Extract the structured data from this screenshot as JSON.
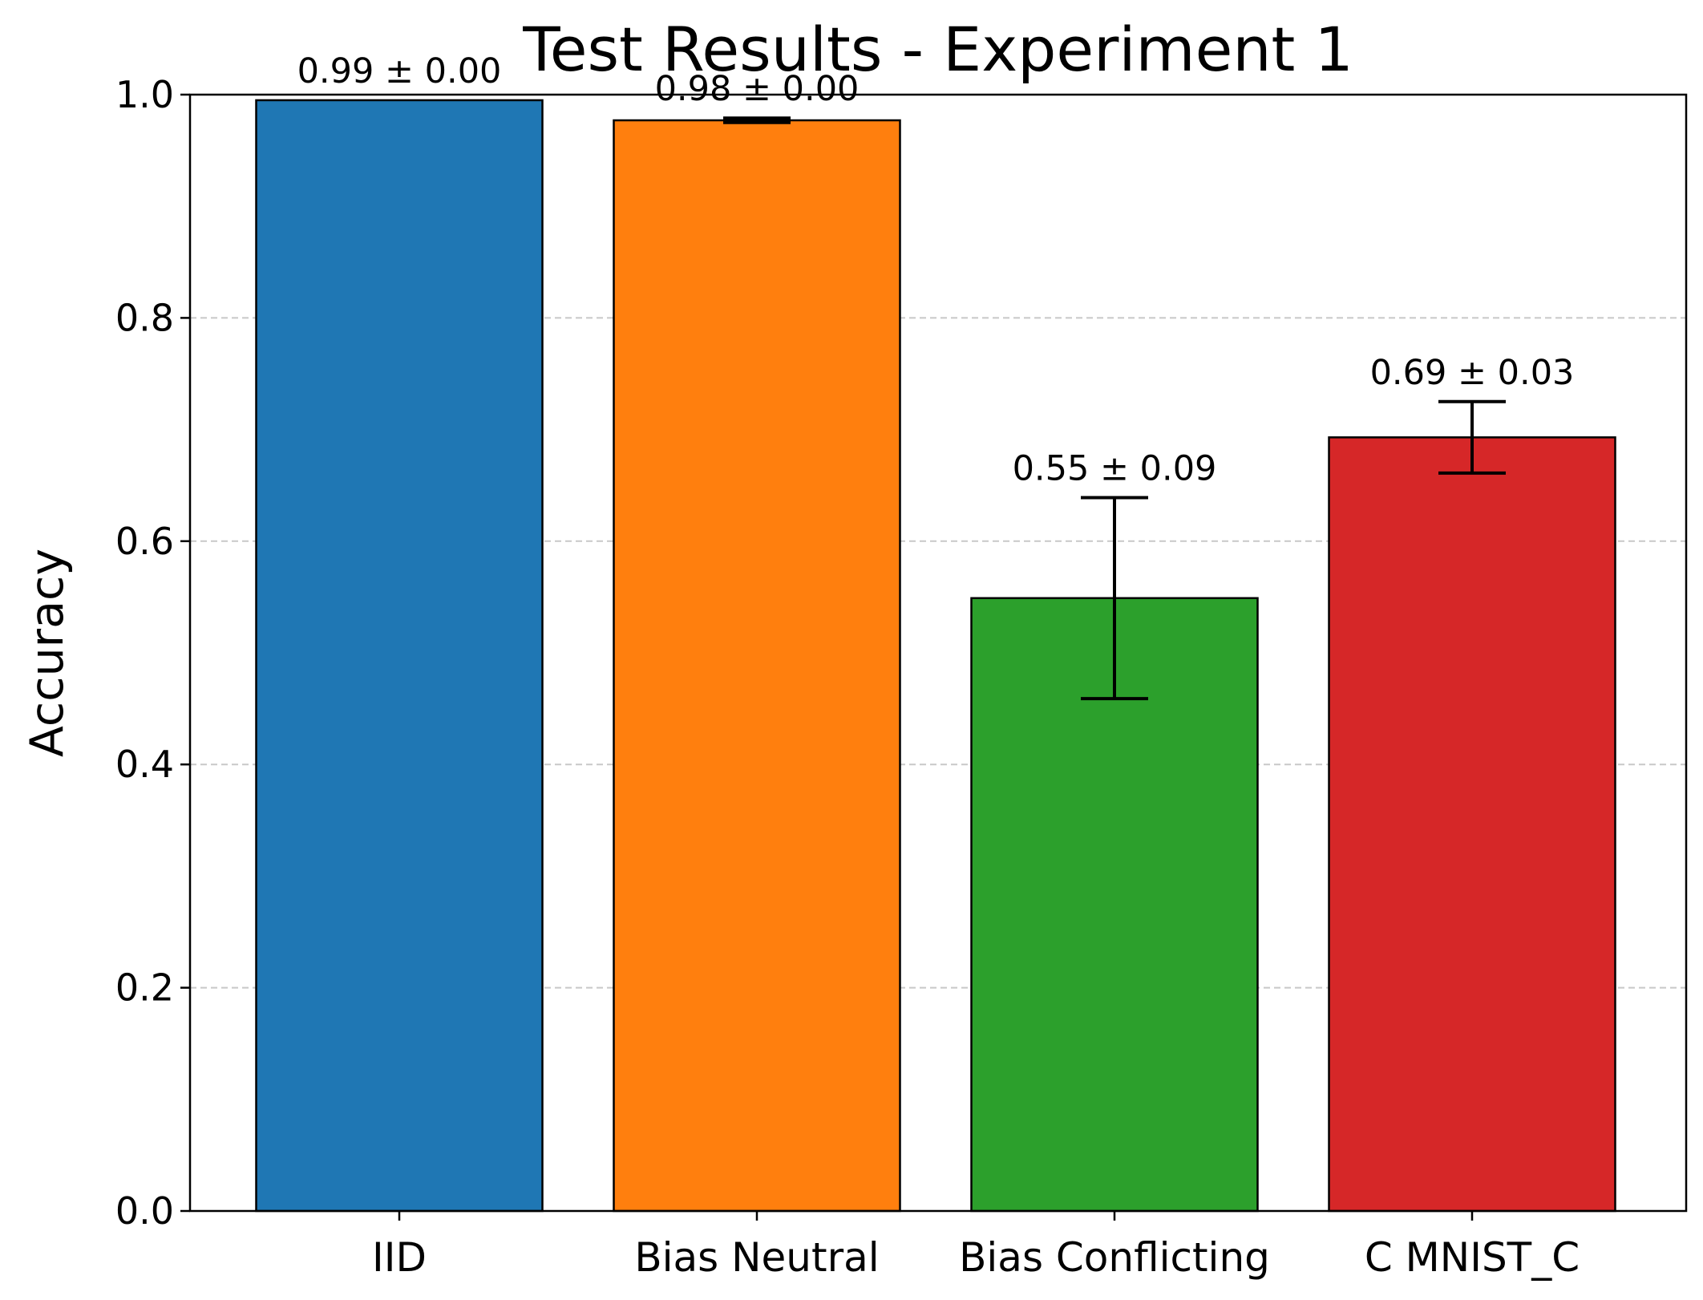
{
  "chart_data": {
    "type": "bar",
    "title": "Test Results - Experiment 1",
    "xlabel": "",
    "ylabel": "Accuracy",
    "ylim": [
      0.0,
      1.0
    ],
    "yticks": [
      "0.0",
      "0.2",
      "0.4",
      "0.6",
      "0.8",
      "1.0"
    ],
    "grid": "y, dashed",
    "categories": [
      "IID",
      "Bias Neutral",
      "Bias Conflicting",
      "C MNIST_C"
    ],
    "values": [
      0.995,
      0.977,
      0.549,
      0.693
    ],
    "errors": [
      0.0,
      0.002,
      0.09,
      0.032
    ],
    "data_labels": [
      "0.99 ± 0.00",
      "0.98 ± 0.00",
      "0.55 ± 0.09",
      "0.69 ± 0.03"
    ],
    "colors": [
      "#1f77b4",
      "#ff7f0e",
      "#2ca02c",
      "#d62728"
    ]
  }
}
